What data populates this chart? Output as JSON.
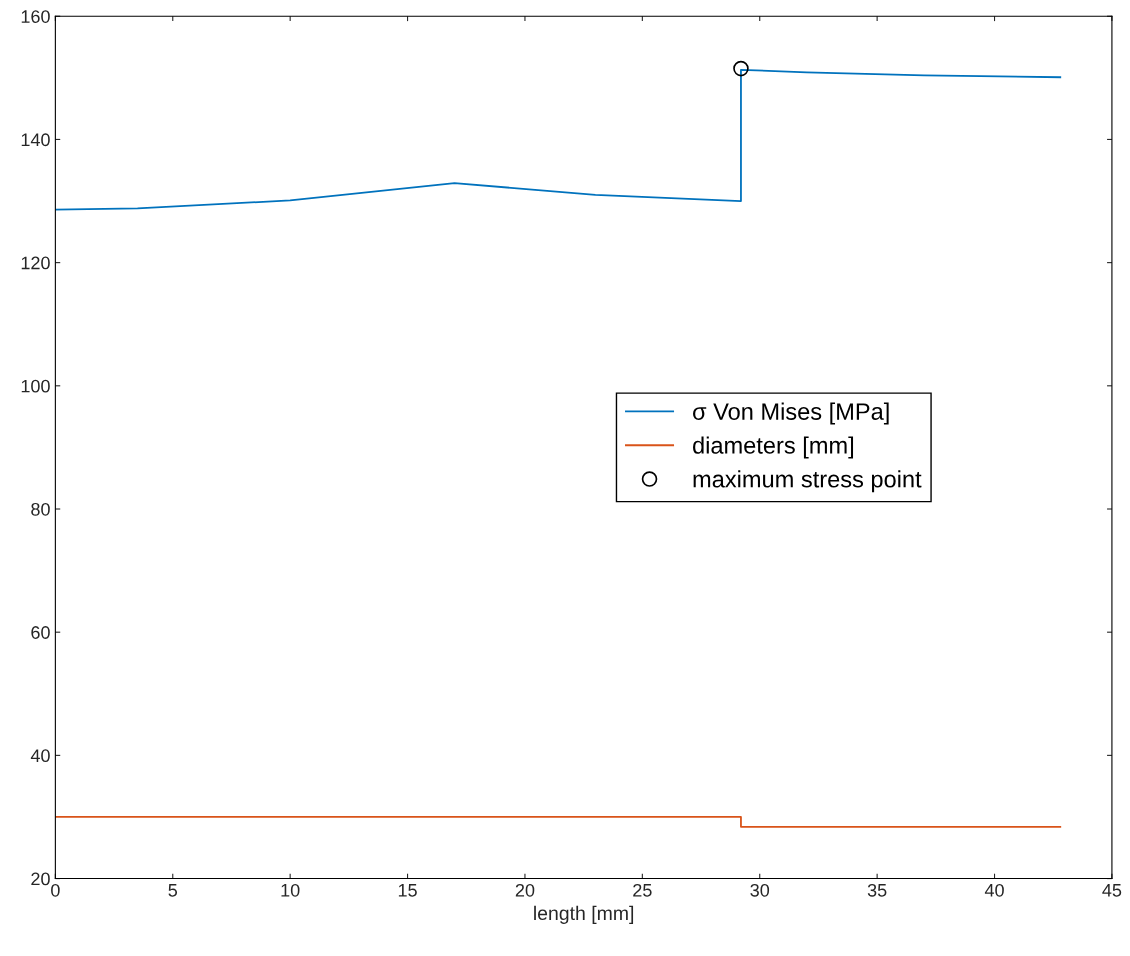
{
  "chart_data": {
    "type": "line",
    "xlabel": "length [mm]",
    "series": [
      {
        "name": "σ Von Mises [MPa]",
        "color": "#0072bd",
        "x": [
          0,
          3.5,
          10,
          17,
          23,
          29.2,
          29.2,
          32,
          37,
          42.8
        ],
        "values": [
          128.6,
          128.8,
          130.1,
          132.9,
          131.0,
          130.0,
          151.3,
          150.9,
          150.4,
          150.1
        ]
      },
      {
        "name": "diameters [mm]",
        "color": "#d95319",
        "x": [
          0,
          29.2,
          29.2,
          42.8
        ],
        "values": [
          30.0,
          30.0,
          28.4,
          28.4
        ]
      },
      {
        "name": "maximum stress point",
        "type": "scatter",
        "marker": "circle",
        "color": "#000000",
        "x": [
          29.2
        ],
        "values": [
          151.5
        ]
      }
    ],
    "xlim": [
      0,
      45
    ],
    "xticks": [
      0,
      5,
      10,
      15,
      20,
      25,
      30,
      35,
      40,
      45
    ],
    "ylim": [
      20,
      160
    ],
    "yticks": [
      20,
      40,
      60,
      80,
      100,
      120,
      140,
      160
    ],
    "grid": false,
    "legend": "center right"
  }
}
